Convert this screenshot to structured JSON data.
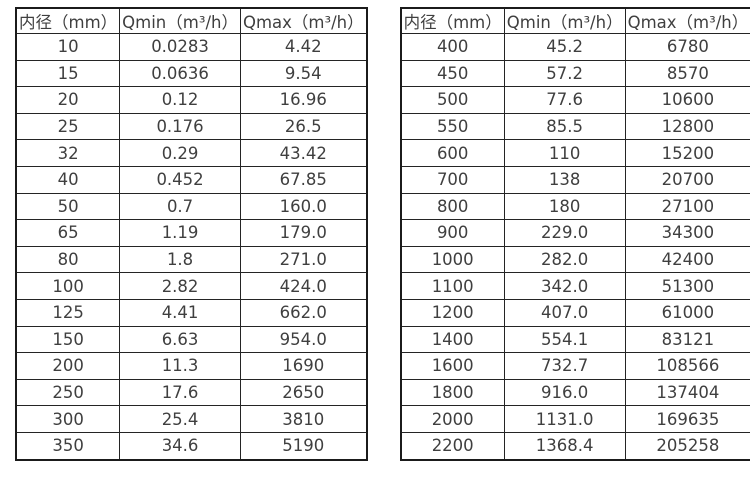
{
  "page": {
    "background": "#ffffff",
    "border_color": "#1b1b1b",
    "text_color": "#3f3f3f"
  },
  "tables": [
    {
      "name": "flow-rate-table-small-diameters",
      "headers": [
        "内径（mm）",
        "Qmin（m³/h）",
        "Qmax（m³/h）"
      ],
      "rows": [
        [
          "10",
          "0.0283",
          "4.42"
        ],
        [
          "15",
          "0.0636",
          "9.54"
        ],
        [
          "20",
          "0.12",
          "16.96"
        ],
        [
          "25",
          "0.176",
          "26.5"
        ],
        [
          "32",
          "0.29",
          "43.42"
        ],
        [
          "40",
          "0.452",
          "67.85"
        ],
        [
          "50",
          "0.7",
          "160.0"
        ],
        [
          "65",
          "1.19",
          "179.0"
        ],
        [
          "80",
          "1.8",
          "271.0"
        ],
        [
          "100",
          "2.82",
          "424.0"
        ],
        [
          "125",
          "4.41",
          "662.0"
        ],
        [
          "150",
          "6.63",
          "954.0"
        ],
        [
          "200",
          "11.3",
          "1690"
        ],
        [
          "250",
          "17.6",
          "2650"
        ],
        [
          "300",
          "25.4",
          "3810"
        ],
        [
          "350",
          "34.6",
          "5190"
        ]
      ]
    },
    {
      "name": "flow-rate-table-large-diameters",
      "headers": [
        "内径（mm）",
        "Qmin（m³/h）",
        "Qmax（m³/h）"
      ],
      "rows": [
        [
          "400",
          "45.2",
          "6780"
        ],
        [
          "450",
          "57.2",
          "8570"
        ],
        [
          "500",
          "77.6",
          "10600"
        ],
        [
          "550",
          "85.5",
          "12800"
        ],
        [
          "600",
          "110",
          "15200"
        ],
        [
          "700",
          "138",
          "20700"
        ],
        [
          "800",
          "180",
          "27100"
        ],
        [
          "900",
          "229.0",
          "34300"
        ],
        [
          "1000",
          "282.0",
          "42400"
        ],
        [
          "1100",
          "342.0",
          "51300"
        ],
        [
          "1200",
          "407.0",
          "61000"
        ],
        [
          "1400",
          "554.1",
          "83121"
        ],
        [
          "1600",
          "732.7",
          "108566"
        ],
        [
          "1800",
          "916.0",
          "137404"
        ],
        [
          "2000",
          "1131.0",
          "169635"
        ],
        [
          "2200",
          "1368.4",
          "205258"
        ]
      ]
    }
  ]
}
